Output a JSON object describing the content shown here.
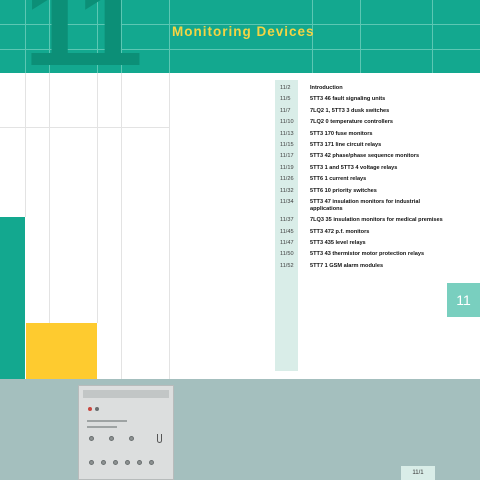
{
  "header": {
    "chapter_number": "11",
    "title": "Monitoring Devices"
  },
  "toc": [
    {
      "page": "11/2",
      "title": "Introduction"
    },
    {
      "page": "11/5",
      "title": "5TT3 46 fault signaling units"
    },
    {
      "page": "11/7",
      "title": "7LQ2 1, 5TT3 3 dusk switches"
    },
    {
      "page": "11/10",
      "title": "7LQ2 0 temperature controllers"
    },
    {
      "page": "11/13",
      "title": "5TT3 170 fuse monitors"
    },
    {
      "page": "11/15",
      "title": "5TT3 171 line circuit relays"
    },
    {
      "page": "11/17",
      "title": "5TT3 42 phase/phase sequence monitors"
    },
    {
      "page": "11/19",
      "title": "5TT3 1 and 5TT3 4 voltage relays"
    },
    {
      "page": "11/26",
      "title": "5TT6 1 current relays"
    },
    {
      "page": "11/32",
      "title": "5TT6 10 priority switches"
    },
    {
      "page": "11/34",
      "title": "5TT3 47 insulation monitors for industrial applications"
    },
    {
      "page": "11/37",
      "title": "7LQ3 35 insulation monitors for medical premises"
    },
    {
      "page": "11/45",
      "title": "5TT3 472 p.f. monitors"
    },
    {
      "page": "11/47",
      "title": "5TT3 435 level relays"
    },
    {
      "page": "11/50",
      "title": "5TT3 43 thermistor motor protection relays"
    },
    {
      "page": "11/52",
      "title": "5TT7 1 GSM alarm modules"
    }
  ],
  "side_tab": {
    "label": "11"
  },
  "footer": {
    "page_number": "11/1"
  },
  "colors": {
    "header_green": "#13a88f",
    "title_yellow": "#f5d443",
    "accent_yellow": "#fecb2f",
    "tab_teal": "#79cfbf",
    "bottom_band": "#a4bfbe"
  }
}
